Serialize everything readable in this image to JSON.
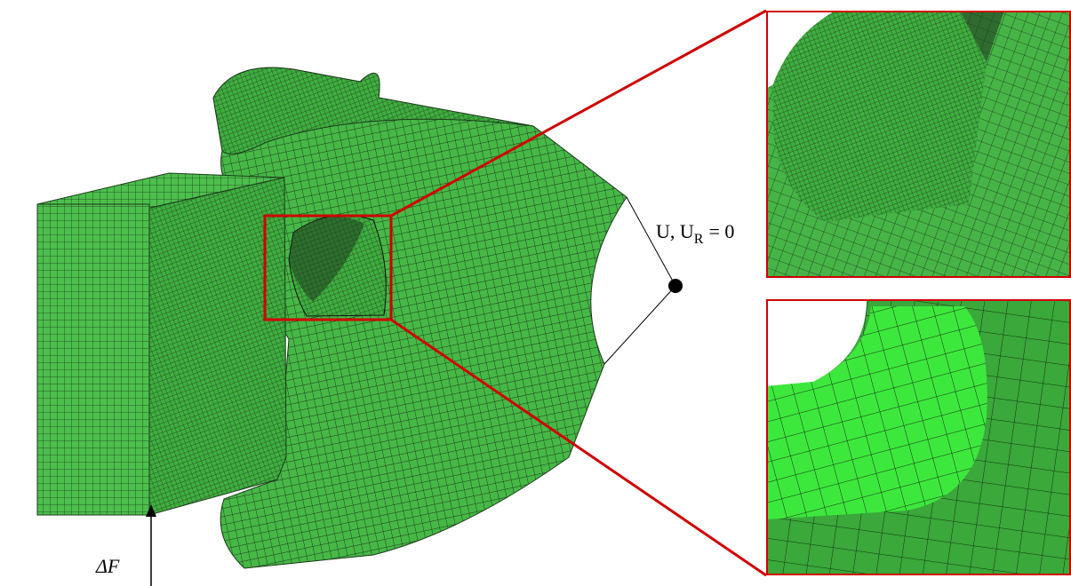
{
  "annotations": {
    "boundary_condition": {
      "text": "U, U",
      "subscript": "R",
      "suffix": "= 0"
    },
    "load": "ΔF"
  }
}
